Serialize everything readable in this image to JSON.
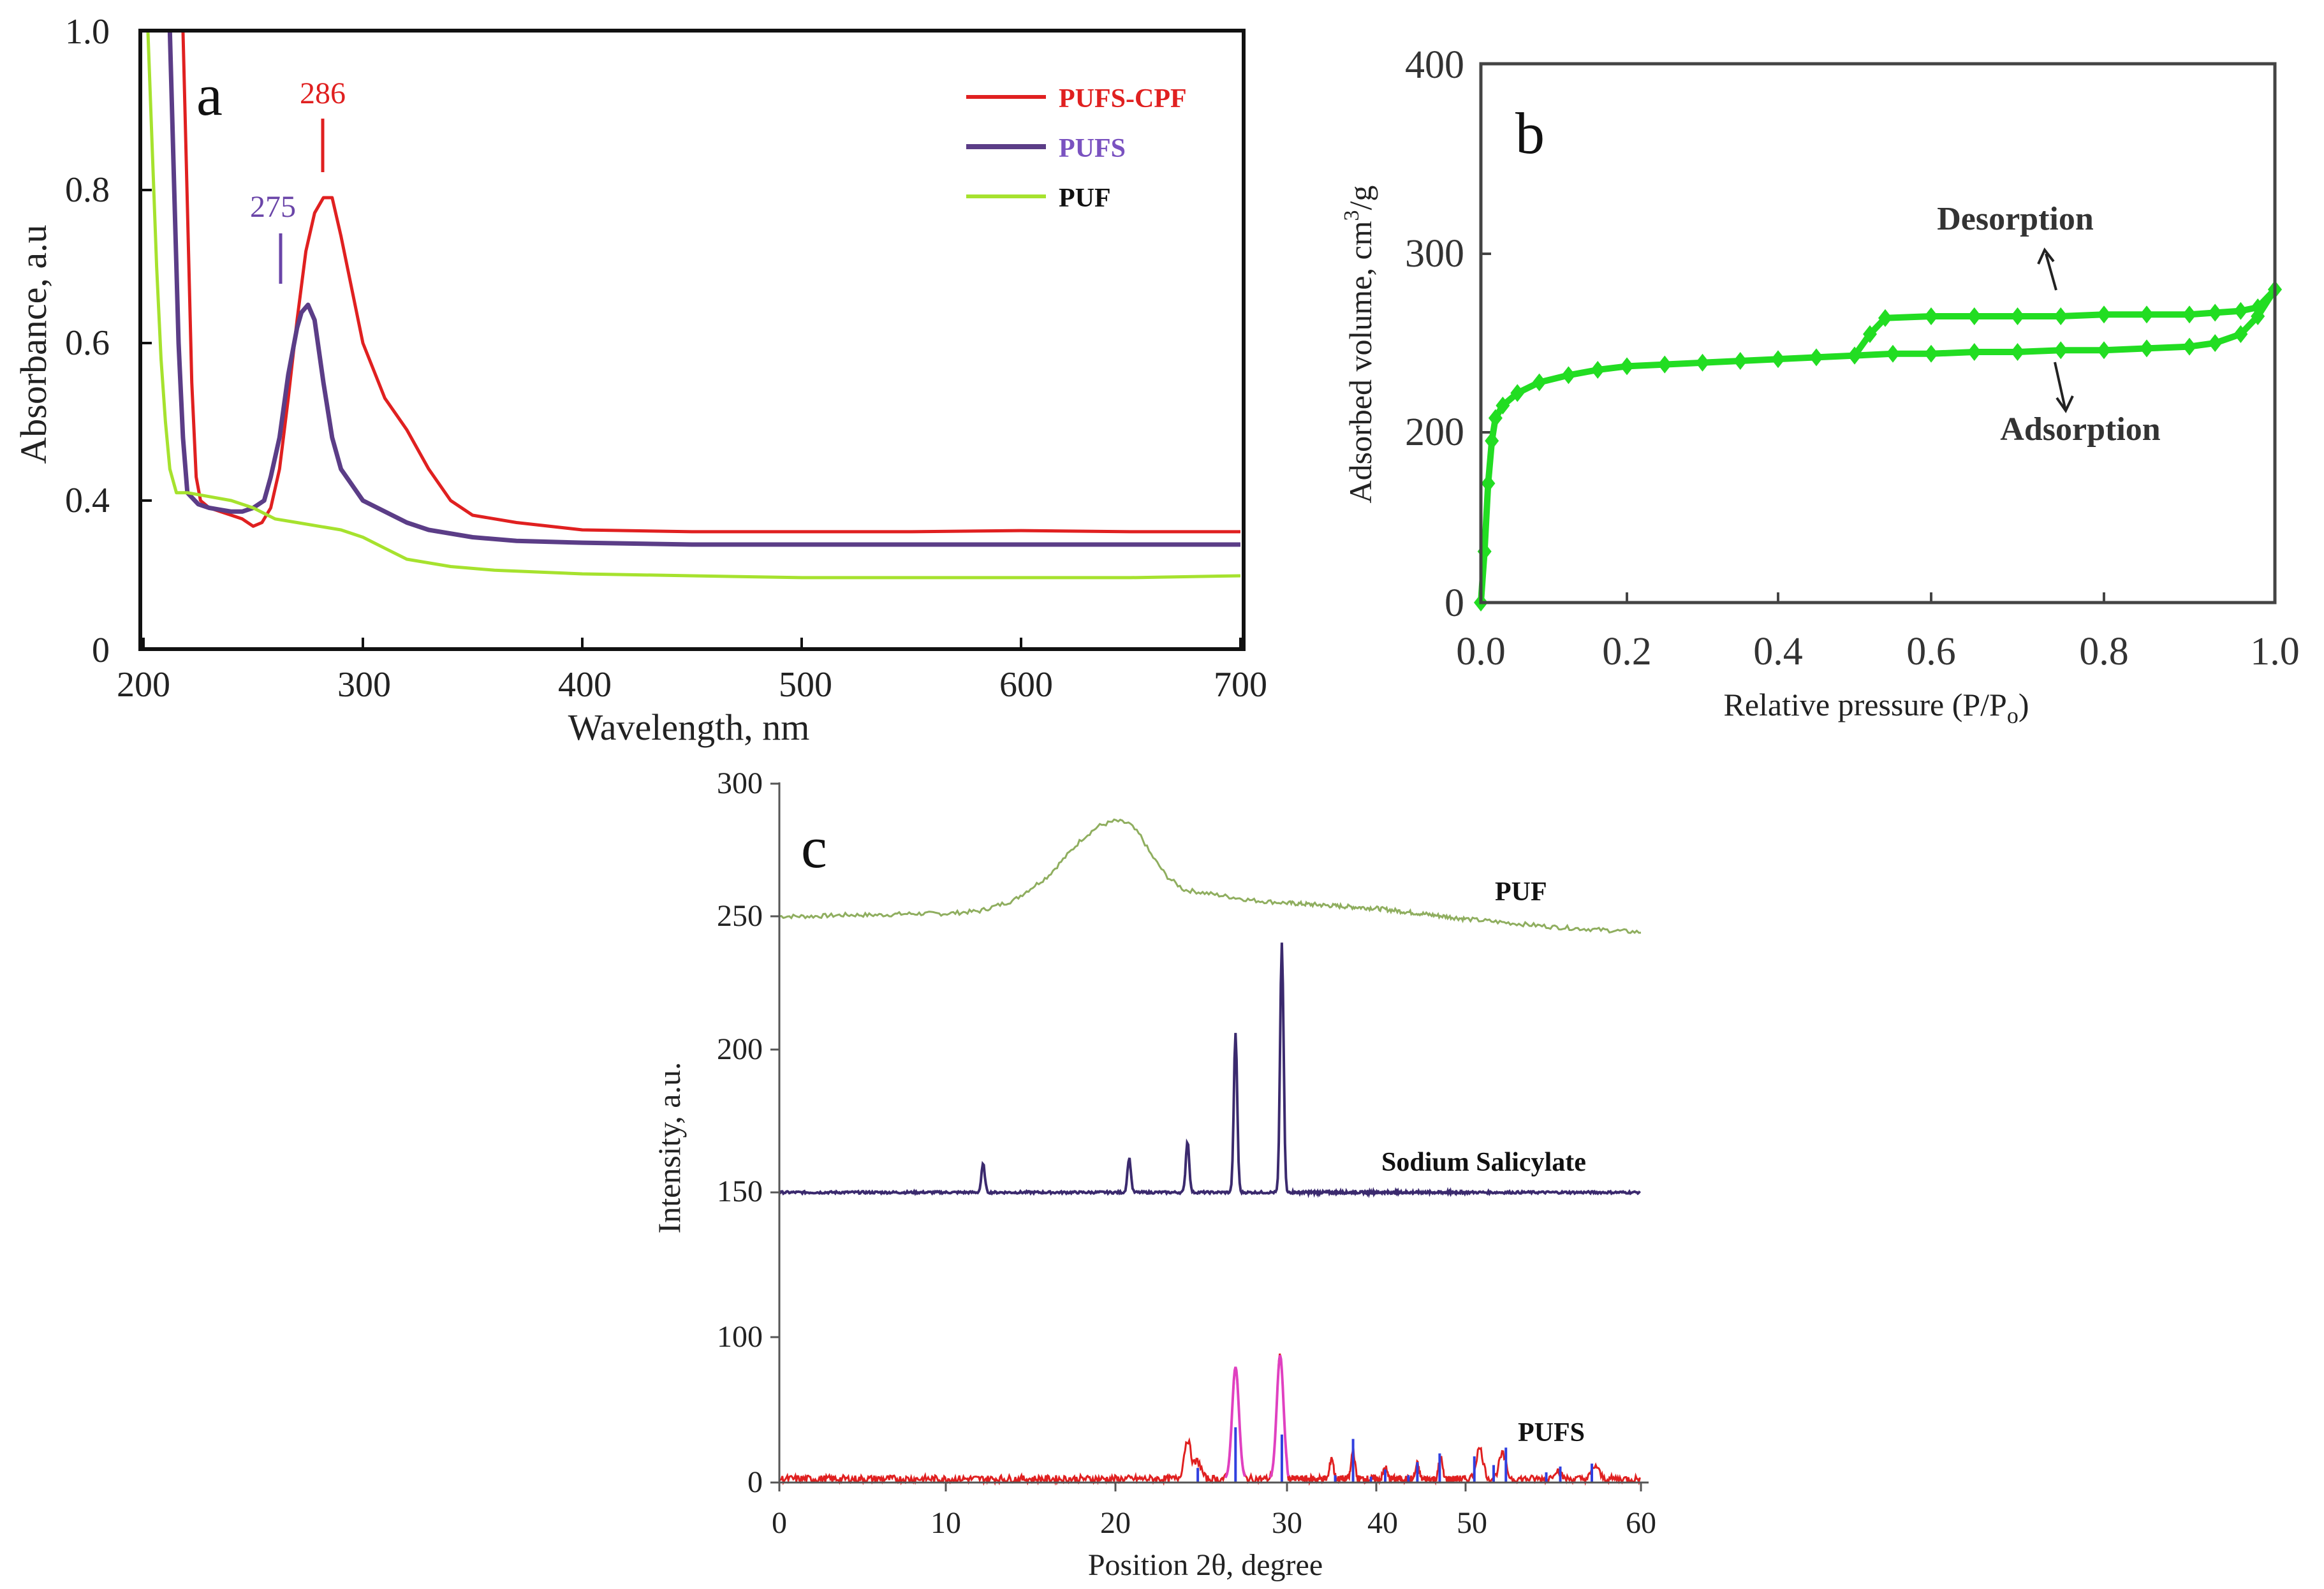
{
  "chart_data": [
    {
      "panel": "a",
      "type": "line",
      "title": "",
      "xlabel": "Wavelength, nm",
      "ylabel": "Absorbance, a.u",
      "xlim": [
        200,
        700
      ],
      "ylim": [
        0,
        1.0
      ],
      "x_ticks": [
        "200",
        "300",
        "400",
        "500",
        "600",
        "700"
      ],
      "y_ticks": [
        "0",
        "0.4",
        "0.6",
        "0.8",
        "1.0"
      ],
      "legend": [
        "PUFS-CPF",
        "PUFS",
        "PUF"
      ],
      "legend_position": "top-right",
      "annotations": [
        {
          "text": "286",
          "series": "PUFS-CPF",
          "x": 286,
          "y": 0.79
        },
        {
          "text": "275",
          "series": "PUFS",
          "x": 275,
          "y": 0.65
        }
      ],
      "series": [
        {
          "name": "PUFS-CPF",
          "color": "#e02020",
          "x": [
            218,
            220,
            222,
            224,
            226,
            230,
            235,
            240,
            245,
            250,
            254,
            258,
            262,
            266,
            270,
            274,
            278,
            282,
            286,
            290,
            295,
            300,
            310,
            320,
            330,
            340,
            350,
            370,
            400,
            450,
            500,
            550,
            600,
            650,
            700
          ],
          "y": [
            1.0,
            0.78,
            0.55,
            0.43,
            0.4,
            0.38,
            0.37,
            0.36,
            0.35,
            0.33,
            0.34,
            0.38,
            0.44,
            0.53,
            0.63,
            0.72,
            0.77,
            0.79,
            0.79,
            0.74,
            0.67,
            0.6,
            0.53,
            0.49,
            0.44,
            0.4,
            0.36,
            0.34,
            0.32,
            0.315,
            0.315,
            0.315,
            0.318,
            0.315,
            0.315
          ]
        },
        {
          "name": "PUFS",
          "color": "#5b3d87",
          "x": [
            212,
            214,
            216,
            218,
            220,
            225,
            230,
            235,
            240,
            245,
            250,
            255,
            258,
            262,
            266,
            270,
            272,
            275,
            278,
            282,
            286,
            290,
            295,
            300,
            310,
            320,
            330,
            350,
            370,
            400,
            450,
            500,
            600,
            700
          ],
          "y": [
            1.0,
            0.8,
            0.6,
            0.48,
            0.41,
            0.39,
            0.38,
            0.375,
            0.37,
            0.37,
            0.38,
            0.4,
            0.43,
            0.48,
            0.56,
            0.62,
            0.64,
            0.65,
            0.63,
            0.55,
            0.48,
            0.44,
            0.42,
            0.4,
            0.37,
            0.34,
            0.32,
            0.3,
            0.29,
            0.285,
            0.28,
            0.28,
            0.28,
            0.28
          ]
        },
        {
          "name": "PUF",
          "color": "#a6e22e",
          "x": [
            202,
            204,
            206,
            208,
            210,
            212,
            215,
            220,
            230,
            240,
            250,
            260,
            270,
            280,
            290,
            300,
            310,
            320,
            340,
            360,
            380,
            400,
            450,
            500,
            550,
            600,
            650,
            700
          ],
          "y": [
            1.0,
            0.85,
            0.7,
            0.58,
            0.5,
            0.44,
            0.41,
            0.41,
            0.405,
            0.4,
            0.38,
            0.35,
            0.34,
            0.33,
            0.32,
            0.3,
            0.27,
            0.24,
            0.22,
            0.21,
            0.205,
            0.2,
            0.195,
            0.19,
            0.19,
            0.19,
            0.19,
            0.195
          ]
        }
      ]
    },
    {
      "panel": "b",
      "type": "line",
      "title": "",
      "xlabel": "Relative pressure (P/Po)",
      "ylabel": "Adsorbed volume, cm3/g",
      "xlim": [
        0,
        1.0
      ],
      "ylim": [
        0,
        400
      ],
      "x_ticks": [
        "0.0",
        "0.2",
        "0.4",
        "0.6",
        "0.8",
        "1.0"
      ],
      "y_ticks": [
        "0",
        "200",
        "300",
        "400"
      ],
      "annotations": [
        "Desorption",
        "Adsorption"
      ],
      "series": [
        {
          "name": "Adsorption",
          "color": "#22dd22",
          "x": [
            0.0,
            0.005,
            0.01,
            0.015,
            0.02,
            0.03,
            0.05,
            0.08,
            0.12,
            0.16,
            0.2,
            0.25,
            0.3,
            0.35,
            0.4,
            0.45,
            0.5,
            0.55,
            0.6,
            0.65,
            0.7,
            0.75,
            0.8,
            0.85,
            0.9,
            0.93,
            0.96,
            0.98,
            1.0
          ],
          "y": [
            0,
            60,
            140,
            190,
            208,
            215,
            222,
            228,
            232,
            235,
            237,
            238,
            239,
            240,
            241,
            242,
            243,
            244,
            244,
            245,
            245,
            246,
            246,
            247,
            248,
            250,
            255,
            265,
            280
          ]
        },
        {
          "name": "Desorption",
          "color": "#22dd22",
          "x": [
            0.5,
            0.52,
            0.54,
            0.6,
            0.65,
            0.7,
            0.75,
            0.8,
            0.85,
            0.9,
            0.93,
            0.96,
            0.98,
            1.0
          ],
          "y": [
            243,
            255,
            264,
            265,
            265,
            265,
            265,
            266,
            266,
            266,
            267,
            268,
            270,
            280
          ]
        }
      ]
    },
    {
      "panel": "c",
      "type": "line",
      "title": "",
      "xlabel": "Position 2θ, degree",
      "ylabel": "Intensity, a.u.",
      "xlim": [
        0,
        60
      ],
      "ylim": [
        0,
        300
      ],
      "x_ticks": [
        "0",
        "10",
        "20",
        "30",
        "40",
        "50",
        "60"
      ],
      "y_ticks": [
        "0",
        "100",
        "150",
        "200",
        "250",
        "300"
      ],
      "series": [
        {
          "name": "PUF",
          "color": "#8fae5f",
          "baseline": 250,
          "x": [
            0,
            2,
            4,
            6,
            8,
            10,
            12,
            14,
            16,
            17,
            18,
            19,
            20,
            20.8,
            21.5,
            22,
            23,
            24,
            26,
            28,
            30,
            35,
            40,
            45,
            50,
            55,
            60
          ],
          "y": [
            250,
            250,
            250.5,
            250.5,
            251,
            251,
            252,
            256,
            265,
            272,
            279,
            284,
            286,
            285,
            280,
            274,
            265,
            260,
            258,
            256,
            255,
            254,
            253,
            251,
            249,
            246,
            244
          ]
        },
        {
          "name": "Sodium Salicylate",
          "color": "#3b2a6e",
          "baseline": 150,
          "peaks": [
            {
              "x": 12.2,
              "h": 10
            },
            {
              "x": 20.8,
              "h": 12
            },
            {
              "x": 24.2,
              "h": 18
            },
            {
              "x": 27.0,
              "h": 56
            },
            {
              "x": 29.7,
              "h": 90
            }
          ]
        },
        {
          "name": "PUFS",
          "color": "#e02020",
          "baseline": 0,
          "peaks": [
            {
              "x": 24.2,
              "h": 27
            },
            {
              "x": 24.8,
              "h": 12
            },
            {
              "x": 27.0,
              "h": 77
            },
            {
              "x": 29.6,
              "h": 85
            },
            {
              "x": 35.0,
              "h": 15
            },
            {
              "x": 37.4,
              "h": 20
            },
            {
              "x": 41.0,
              "h": 8
            },
            {
              "x": 44.6,
              "h": 10
            },
            {
              "x": 47.2,
              "h": 15
            },
            {
              "x": 50.8,
              "h": 21
            },
            {
              "x": 52.1,
              "h": 17
            },
            {
              "x": 55.2,
              "h": 6
            },
            {
              "x": 57.4,
              "h": 9
            }
          ]
        },
        {
          "name": "reference sticks",
          "color": "#3040e0",
          "x": [
            24.8,
            27.0,
            29.7,
            35.4,
            37.4,
            39.4,
            41.0,
            43.6,
            44.6,
            47.1,
            50.5,
            51.6,
            52.3,
            54.6,
            55.4,
            57.2
          ],
          "y": [
            10,
            38,
            33,
            5,
            30,
            4,
            9,
            5,
            14,
            20,
            18,
            12,
            24,
            7,
            11,
            13
          ]
        }
      ],
      "labels": [
        "PUF",
        "Sodium Salicylate",
        "PUFS"
      ]
    }
  ],
  "labels": {
    "panel_a": "a",
    "panel_b": "b",
    "panel_c": "c",
    "legend_pufs_cpf": "PUFS-CPF",
    "legend_pufs": "PUFS",
    "legend_puf": "PUF",
    "peak_286": "286",
    "peak_275": "275",
    "desorption": "Desorption",
    "adsorption": "Adsorption",
    "c_puf": "PUF",
    "c_sodium": "Sodium  Salicylate",
    "c_pufs": "PUFS",
    "a_xlabel": "Wavelength, nm",
    "a_ylabel": "Absorbance, a.u",
    "b_xlabel_main": "Relative pressure (P/P",
    "b_xlabel_sub": "o",
    "b_xlabel_end": ")",
    "b_ylabel_main": "Adsorbed volume,  cm",
    "b_ylabel_sup": "3",
    "b_ylabel_end": "/g",
    "c_xlabel": "Position 2θ, degree",
    "c_ylabel": "Intensity, a.u."
  }
}
